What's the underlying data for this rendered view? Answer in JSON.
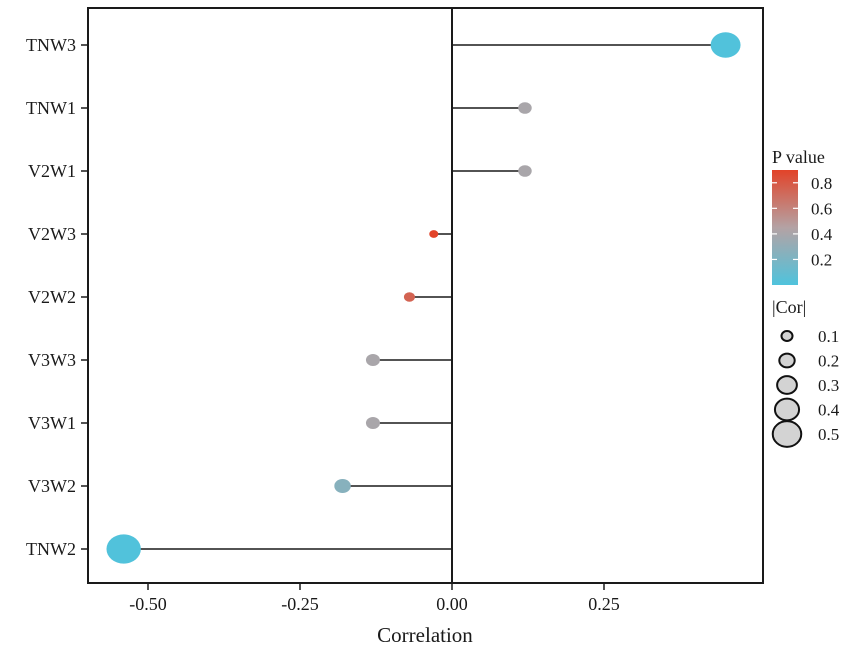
{
  "chart_data": {
    "type": "lollipop",
    "xlabel": "Correlation",
    "xlim": [
      -0.6,
      0.5
    ],
    "xticks": [
      -0.5,
      -0.25,
      0.0,
      0.25
    ],
    "xtick_labels": [
      "-0.50",
      "-0.25",
      "0.00",
      "0.25"
    ],
    "categories": [
      "TNW3",
      "TNW1",
      "V2W1",
      "V2W3",
      "V2W2",
      "V3W3",
      "V3W1",
      "V3W2",
      "TNW2"
    ],
    "correlation": [
      0.45,
      0.12,
      0.12,
      -0.03,
      -0.07,
      -0.13,
      -0.13,
      -0.18,
      -0.54
    ],
    "p_value": [
      0.01,
      0.4,
      0.4,
      0.9,
      0.75,
      0.4,
      0.4,
      0.25,
      0.01
    ],
    "abs_cor": [
      0.45,
      0.12,
      0.12,
      0.03,
      0.07,
      0.13,
      0.13,
      0.18,
      0.54
    ],
    "zero_line": true,
    "grid": false,
    "legend_color": {
      "title": "P value",
      "ticks": [
        0.8,
        0.6,
        0.4,
        0.2
      ],
      "tick_labels": [
        "0.8",
        "0.6",
        "0.4",
        "0.2"
      ],
      "range": [
        0.0,
        0.9
      ],
      "low_color": "#4fc3dc",
      "mid_color": "#b4a2a4",
      "high_color": "#e24329"
    },
    "legend_size": {
      "title": "|Cor|",
      "values": [
        0.1,
        0.2,
        0.3,
        0.4,
        0.5
      ],
      "labels": [
        "0.1",
        "0.2",
        "0.3",
        "0.4",
        "0.5"
      ],
      "fill": "#d3d3d3"
    },
    "legend_placement": "right"
  }
}
